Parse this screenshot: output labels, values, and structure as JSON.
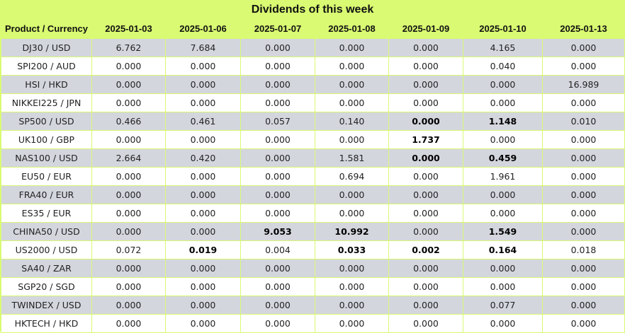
{
  "title": "Dividends of this week",
  "header": {
    "first_col": "Product / Currency",
    "dates": [
      "2025-01-03",
      "2025-01-06",
      "2025-01-07",
      "2025-01-08",
      "2025-01-09",
      "2025-01-10",
      "2025-01-13"
    ]
  },
  "rows": [
    {
      "product": "DJ30 / USD",
      "values": [
        "6.762",
        "7.684",
        "0.000",
        "0.000",
        "0.000",
        "4.165",
        "0.000"
      ],
      "bold": []
    },
    {
      "product": "SPI200 / AUD",
      "values": [
        "0.000",
        "0.000",
        "0.000",
        "0.000",
        "0.000",
        "0.040",
        "0.000"
      ],
      "bold": []
    },
    {
      "product": "HSI / HKD",
      "values": [
        "0.000",
        "0.000",
        "0.000",
        "0.000",
        "0.000",
        "0.000",
        "16.989"
      ],
      "bold": []
    },
    {
      "product": "NIKKEI225 / JPN",
      "values": [
        "0.000",
        "0.000",
        "0.000",
        "0.000",
        "0.000",
        "0.000",
        "0.000"
      ],
      "bold": []
    },
    {
      "product": "SP500 / USD",
      "values": [
        "0.466",
        "0.461",
        "0.057",
        "0.140",
        "0.000",
        "1.148",
        "0.010"
      ],
      "bold": [
        4,
        5
      ]
    },
    {
      "product": "UK100 / GBP",
      "values": [
        "0.000",
        "0.000",
        "0.000",
        "0.000",
        "1.737",
        "0.000",
        "0.000"
      ],
      "bold": [
        4
      ]
    },
    {
      "product": "NAS100 / USD",
      "values": [
        "2.664",
        "0.420",
        "0.000",
        "1.581",
        "0.000",
        "0.459",
        "0.000"
      ],
      "bold": [
        4,
        5
      ]
    },
    {
      "product": "EU50 / EUR",
      "values": [
        "0.000",
        "0.000",
        "0.000",
        "0.694",
        "0.000",
        "1.961",
        "0.000"
      ],
      "bold": []
    },
    {
      "product": "FRA40 / EUR",
      "values": [
        "0.000",
        "0.000",
        "0.000",
        "0.000",
        "0.000",
        "0.000",
        "0.000"
      ],
      "bold": []
    },
    {
      "product": "ES35 / EUR",
      "values": [
        "0.000",
        "0.000",
        "0.000",
        "0.000",
        "0.000",
        "0.000",
        "0.000"
      ],
      "bold": []
    },
    {
      "product": "CHINA50 / USD",
      "values": [
        "0.000",
        "0.000",
        "9.053",
        "10.992",
        "0.000",
        "1.549",
        "0.000"
      ],
      "bold": [
        2,
        3,
        5
      ]
    },
    {
      "product": "US2000 / USD",
      "values": [
        "0.072",
        "0.019",
        "0.004",
        "0.033",
        "0.002",
        "0.164",
        "0.018"
      ],
      "bold": [
        1,
        3,
        4,
        5
      ]
    },
    {
      "product": "SA40 / ZAR",
      "values": [
        "0.000",
        "0.000",
        "0.000",
        "0.000",
        "0.000",
        "0.000",
        "0.000"
      ],
      "bold": []
    },
    {
      "product": "SGP20 / SGD",
      "values": [
        "0.000",
        "0.000",
        "0.000",
        "0.000",
        "0.000",
        "0.000",
        "0.000"
      ],
      "bold": []
    },
    {
      "product": "TWINDEX / USD",
      "values": [
        "0.000",
        "0.000",
        "0.000",
        "0.000",
        "0.000",
        "0.077",
        "0.000"
      ],
      "bold": []
    },
    {
      "product": "HKTECH / HKD",
      "values": [
        "0.000",
        "0.000",
        "0.000",
        "0.000",
        "0.000",
        "0.000",
        "0.000"
      ],
      "bold": []
    }
  ],
  "colors": {
    "header_bg": "#d9fa72",
    "row_alt_bg": "#d4d6de",
    "row_bg": "#ffffff"
  }
}
